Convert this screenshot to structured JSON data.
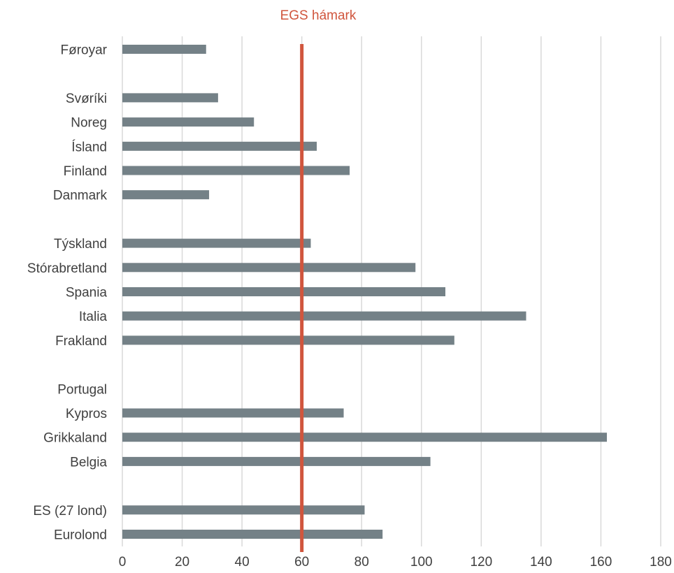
{
  "chart_data": {
    "type": "bar",
    "orientation": "horizontal",
    "categories": [
      "Føroyar",
      "",
      "Svøríki",
      "Noreg",
      "Ísland",
      "Finland",
      "Danmark",
      "",
      "Týskland",
      "Stórabretland",
      "Spania",
      "Italia",
      "Frakland",
      "",
      "Portugal",
      "Kypros",
      "Grikkaland",
      "Belgia",
      "",
      "ES (27 lond)",
      "Eurolond"
    ],
    "values": [
      28,
      null,
      32,
      44,
      65,
      76,
      29,
      null,
      63,
      98,
      108,
      135,
      111,
      null,
      null,
      74,
      162,
      103,
      null,
      81,
      87
    ],
    "xlim": [
      0,
      180
    ],
    "xticks": [
      0,
      20,
      40,
      60,
      80,
      100,
      120,
      140,
      160,
      180
    ],
    "grid": "vertical",
    "bar_color": "#748187",
    "reference_line": {
      "label": "EGS hámark",
      "value": 60,
      "color": "#d0553d"
    },
    "title": "",
    "xlabel": "",
    "ylabel": ""
  }
}
